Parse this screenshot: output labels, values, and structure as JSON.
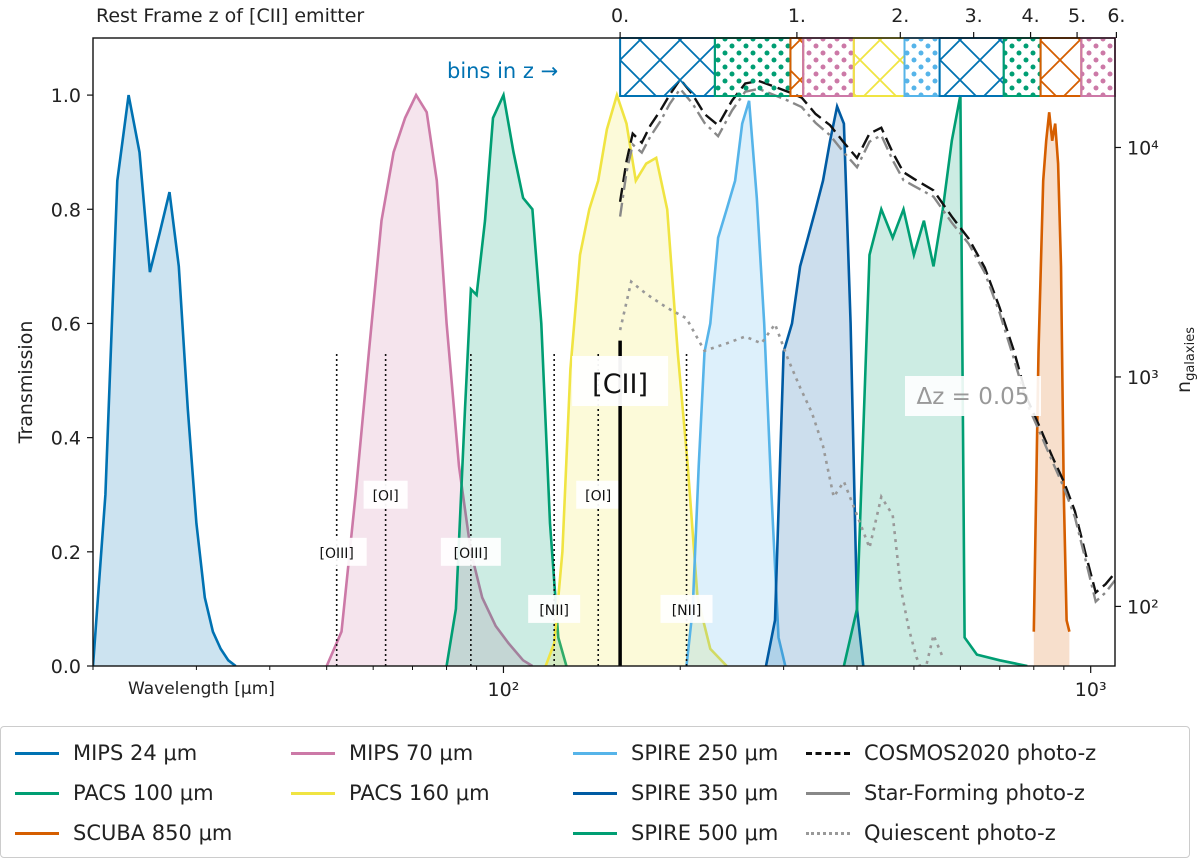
{
  "chart_data": {
    "type": "area",
    "xlabel": "Wavelength [μm]",
    "ylabel": "Transmission",
    "y2label": "n_galaxies",
    "top_axis_label": "Rest Frame z of [CII] emitter",
    "top_ticks": [
      "0.",
      "1.",
      "2.",
      "3.",
      "4.",
      "5.",
      "6."
    ],
    "top_tick_z": [
      0,
      1,
      2,
      3,
      4,
      5,
      6
    ],
    "x_scale": "log",
    "xlim": [
      20,
      1100
    ],
    "ylim": [
      0,
      1.1
    ],
    "y2_scale": "log",
    "y2lim": [
      55,
      30000
    ],
    "x_ticks": [
      {
        "value": 100,
        "label": "10²"
      },
      {
        "value": 1000,
        "label": "10³"
      }
    ],
    "y_ticks": [
      "0.0",
      "0.2",
      "0.4",
      "0.6",
      "0.8",
      "1.0"
    ],
    "y2_ticks": [
      {
        "value": 100,
        "label": "10²"
      },
      {
        "value": 1000,
        "label": "10³"
      },
      {
        "value": 10000,
        "label": "10⁴"
      }
    ],
    "bins_label": "bins in z →",
    "cii_label": "[CII]",
    "dz_label": "Δz = 0.05",
    "cii_wavelength": 158,
    "z_bins": [
      {
        "z0": 0.0,
        "z1": 0.45,
        "pattern": "hatch",
        "color": "#0072b2"
      },
      {
        "z0": 0.45,
        "z1": 0.95,
        "pattern": "dots",
        "color": "#009e73"
      },
      {
        "z0": 0.95,
        "z1": 1.05,
        "pattern": "hatch",
        "color": "#d55e00"
      },
      {
        "z0": 1.05,
        "z1": 1.5,
        "pattern": "dots",
        "color": "#cc79a7"
      },
      {
        "z0": 1.5,
        "z1": 2.05,
        "pattern": "hatch",
        "color": "#f0e442"
      },
      {
        "z0": 2.05,
        "z1": 2.5,
        "pattern": "dots",
        "color": "#56b4e9"
      },
      {
        "z0": 2.5,
        "z1": 3.5,
        "pattern": "hatch",
        "color": "#0072b2"
      },
      {
        "z0": 3.5,
        "z1": 4.2,
        "pattern": "dots",
        "color": "#009e73"
      },
      {
        "z0": 4.2,
        "z1": 5.1,
        "pattern": "hatch",
        "color": "#d55e00"
      },
      {
        "z0": 5.1,
        "z1": 6.2,
        "pattern": "dots",
        "color": "#cc79a7"
      }
    ],
    "lines": [
      {
        "label": "[OIII]",
        "wavelength": 52,
        "top": 0.55,
        "label_y": 0.2
      },
      {
        "label": "[OI]",
        "wavelength": 63,
        "top": 0.55,
        "label_y": 0.3
      },
      {
        "label": "[OIII]",
        "wavelength": 88,
        "top": 0.55,
        "label_y": 0.2
      },
      {
        "label": "[NII]",
        "wavelength": 122,
        "top": 0.55,
        "label_y": 0.1
      },
      {
        "label": "[OI]",
        "wavelength": 145,
        "top": 0.55,
        "label_y": 0.3
      },
      {
        "label": "[NII]",
        "wavelength": 205,
        "top": 0.55,
        "label_y": 0.1
      }
    ],
    "filters": [
      {
        "name": "MIPS 24 μm",
        "color": "#0072b2",
        "x": [
          20,
          21,
          22,
          23,
          24,
          25,
          26,
          27,
          28,
          29,
          30,
          31,
          32,
          33,
          34,
          35
        ],
        "y": [
          0.0,
          0.3,
          0.85,
          1.0,
          0.9,
          0.69,
          0.76,
          0.83,
          0.7,
          0.45,
          0.25,
          0.12,
          0.06,
          0.03,
          0.01,
          0.0
        ]
      },
      {
        "name": "MIPS 70 μm",
        "color": "#cc79a7",
        "x": [
          50,
          53,
          56,
          59,
          62,
          65,
          68,
          71,
          74,
          77,
          80,
          84,
          88,
          92,
          97,
          102,
          108,
          112
        ],
        "y": [
          0.0,
          0.06,
          0.3,
          0.55,
          0.78,
          0.9,
          0.96,
          1.0,
          0.97,
          0.85,
          0.6,
          0.35,
          0.2,
          0.12,
          0.07,
          0.04,
          0.01,
          0.0
        ]
      },
      {
        "name": "PACS 100 μm",
        "color": "#009e73",
        "x": [
          80,
          83,
          86,
          88,
          90,
          93,
          96,
          100,
          104,
          108,
          112,
          116,
          120,
          124,
          128
        ],
        "y": [
          0.0,
          0.1,
          0.45,
          0.66,
          0.65,
          0.78,
          0.96,
          1.0,
          0.9,
          0.82,
          0.8,
          0.6,
          0.25,
          0.05,
          0.0
        ]
      },
      {
        "name": "PACS 160 μm",
        "color": "#f0e442",
        "x": [
          118,
          122,
          126,
          130,
          135,
          140,
          145,
          150,
          156,
          162,
          168,
          175,
          182,
          190,
          198,
          206,
          214,
          225,
          240
        ],
        "y": [
          0.0,
          0.04,
          0.2,
          0.52,
          0.72,
          0.8,
          0.85,
          0.94,
          1.0,
          0.95,
          0.85,
          0.88,
          0.89,
          0.8,
          0.55,
          0.35,
          0.12,
          0.03,
          0.0
        ]
      },
      {
        "name": "SPIRE 250 μm",
        "color": "#56b4e9",
        "x": [
          205,
          210,
          215,
          220,
          225,
          232,
          240,
          248,
          255,
          262,
          270,
          278,
          286,
          294,
          302
        ],
        "y": [
          0.0,
          0.1,
          0.35,
          0.55,
          0.6,
          0.75,
          0.8,
          0.85,
          0.95,
          0.99,
          0.82,
          0.6,
          0.3,
          0.05,
          0.0
        ]
      },
      {
        "name": "SPIRE 350 μm",
        "color": "#005ba3",
        "x": [
          280,
          290,
          300,
          310,
          320,
          330,
          340,
          350,
          360,
          370,
          380,
          390,
          400,
          410
        ],
        "y": [
          0.0,
          0.08,
          0.55,
          0.6,
          0.7,
          0.75,
          0.8,
          0.85,
          0.92,
          0.98,
          0.95,
          0.6,
          0.1,
          0.0
        ]
      },
      {
        "name": "SPIRE 500 μm",
        "color": "#009e73",
        "x": [
          380,
          400,
          420,
          440,
          460,
          480,
          500,
          520,
          540,
          560,
          580,
          600,
          610,
          640,
          700,
          780
        ],
        "y": [
          0.0,
          0.1,
          0.72,
          0.8,
          0.75,
          0.8,
          0.72,
          0.78,
          0.7,
          0.8,
          0.92,
          1.0,
          0.05,
          0.02,
          0.01,
          0.0
        ]
      },
      {
        "name": "SCUBA 850 μm",
        "color": "#d55e00",
        "x": [
          800,
          815,
          830,
          840,
          850,
          860,
          870,
          880,
          890,
          900,
          910,
          920
        ],
        "y": [
          0.06,
          0.55,
          0.85,
          0.92,
          0.97,
          0.92,
          0.95,
          0.88,
          0.7,
          0.3,
          0.08,
          0.06
        ]
      }
    ],
    "photoz_series": [
      {
        "name": "COSMOS2020 photo-z",
        "color": "#111111",
        "style": "dashed",
        "x": [
          158,
          162,
          166,
          172,
          178,
          185,
          192,
          200,
          210,
          220,
          232,
          245,
          258,
          272,
          288,
          305,
          322,
          340,
          360,
          380,
          400,
          420,
          440,
          460,
          480,
          500,
          540,
          580,
          620,
          660,
          700,
          740,
          780,
          820,
          860,
          900,
          940,
          980,
          1020,
          1060,
          1100
        ],
        "y": [
          5800,
          8700,
          11500,
          10500,
          12500,
          14500,
          17000,
          19800,
          17000,
          14000,
          12500,
          16000,
          19000,
          19500,
          18500,
          17500,
          16500,
          14000,
          12500,
          10500,
          9000,
          11500,
          12200,
          9500,
          7800,
          7300,
          6500,
          5000,
          4000,
          3000,
          2000,
          1300,
          800,
          600,
          450,
          350,
          260,
          170,
          115,
          125,
          140
        ]
      },
      {
        "name": "Star-Forming photo-z",
        "color": "#888888",
        "style": "dashdot",
        "x": [
          158,
          162,
          166,
          172,
          178,
          185,
          192,
          200,
          210,
          220,
          232,
          245,
          258,
          272,
          288,
          305,
          322,
          340,
          360,
          380,
          400,
          420,
          440,
          460,
          480,
          500,
          540,
          580,
          620,
          660,
          700,
          740,
          780,
          820,
          860,
          900,
          940,
          980,
          1020,
          1060,
          1100
        ],
        "y": [
          5000,
          7800,
          10300,
          9500,
          11200,
          13000,
          15500,
          18000,
          15500,
          12800,
          11200,
          14500,
          17500,
          18000,
          17000,
          16000,
          15000,
          12800,
          11300,
          9500,
          8200,
          10600,
          11300,
          8800,
          7200,
          6800,
          6100,
          4700,
          3800,
          2850,
          1900,
          1200,
          760,
          570,
          430,
          330,
          245,
          160,
          105,
          115,
          130
        ]
      },
      {
        "name": "Quiescent photo-z",
        "color": "#999999",
        "style": "dotted",
        "x": [
          158,
          165,
          175,
          190,
          205,
          220,
          240,
          258,
          275,
          290,
          305,
          320,
          335,
          350,
          365,
          380,
          400,
          420,
          440,
          460,
          475,
          490,
          505,
          520,
          540,
          560
        ],
        "y": [
          1600,
          2600,
          2300,
          2000,
          1800,
          1300,
          1400,
          1500,
          1400,
          1700,
          1200,
          900,
          700,
          500,
          300,
          350,
          250,
          180,
          300,
          250,
          120,
          80,
          60,
          50,
          75,
          60
        ]
      }
    ]
  },
  "legend": [
    {
      "label": "MIPS 24 μm",
      "color": "#0072b2",
      "style": "solid"
    },
    {
      "label": "PACS 100 μm",
      "color": "#009e73",
      "style": "solid"
    },
    {
      "label": "SCUBA 850 μm",
      "color": "#d55e00",
      "style": "solid"
    },
    {
      "label": "MIPS 70 μm",
      "color": "#cc79a7",
      "style": "solid"
    },
    {
      "label": "PACS 160 μm",
      "color": "#f0e442",
      "style": "solid"
    },
    {
      "label": "SPIRE 250 μm",
      "color": "#56b4e9",
      "style": "solid"
    },
    {
      "label": "SPIRE 350 μm",
      "color": "#005ba3",
      "style": "solid"
    },
    {
      "label": "SPIRE 500 μm",
      "color": "#009e73",
      "style": "solid"
    },
    {
      "label": "COSMOS2020 photo-z",
      "color": "#111111",
      "style": "dashed"
    },
    {
      "label": "Star-Forming photo-z",
      "color": "#888888",
      "style": "dashdot"
    },
    {
      "label": "Quiescent photo-z",
      "color": "#999999",
      "style": "dotted"
    }
  ]
}
